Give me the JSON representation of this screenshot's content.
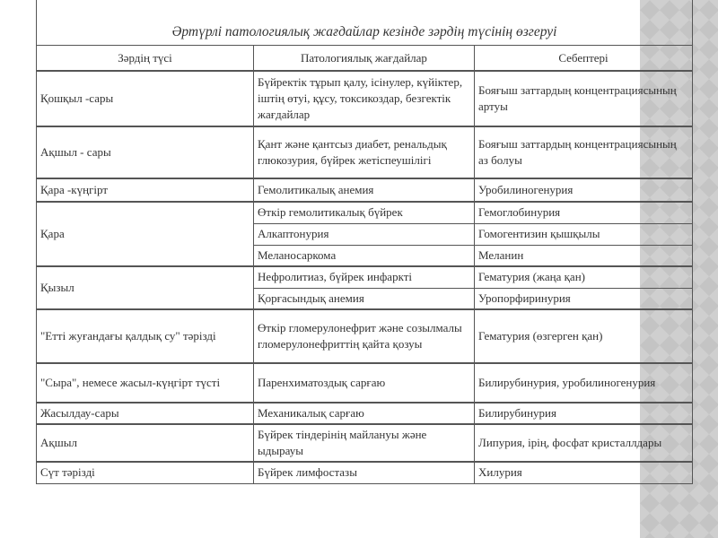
{
  "title": "Әртүрлі патологиялық жағдайлар кезінде зәрдің түсінің өзгеруі",
  "headers": [
    "Зәрдің түсі",
    "Патологиялық жағдайлар",
    "Себептері"
  ],
  "rows": [
    {
      "color": "Қошқыл -сары",
      "items": [
        {
          "condition": "Бүйректік тұрып қалу, ісінулер, күйіктер, іштің өтуі, құсу, токсикоздар, безгектік жағдайлар",
          "cause": "Бояғыш заттардың концентрациясының артуы"
        }
      ]
    },
    {
      "color": "Ақшыл - сары",
      "items": [
        {
          "condition": "Қант және қантсыз диабет, ренальдық глюкозурия, бүйрек жетіспеушілігі",
          "cause": "Бояғыш заттардың концентрациясының аз болуы"
        }
      ]
    },
    {
      "color": "Қара -күңгірт",
      "items": [
        {
          "condition": "Гемолитикалық анемия",
          "cause": "Уробилиногенурия"
        }
      ]
    },
    {
      "color": "Қара",
      "items": [
        {
          "condition": "Өткір гемолитикалық бүйрек",
          "cause": "Гемоглобинурия"
        },
        {
          "condition": "Алкаптонурия",
          "cause": "Гомогентизин қышқылы"
        },
        {
          "condition": "Меланосаркома",
          "cause": "Меланин"
        }
      ]
    },
    {
      "color": "Қызыл",
      "items": [
        {
          "condition": "Нефролитиаз, бүйрек инфаркті",
          "cause": "Гематурия (жаңа қан)"
        },
        {
          "condition": "Қорғасындық  анемия",
          "cause": "Уропорфиринурия"
        }
      ]
    },
    {
      "color": "\"Етті жуғандағы қалдық су\" тәрізді",
      "items": [
        {
          "condition": "Өткір гломерулонефрит және созылмалы гломерулонефриттің қайта қозуы",
          "cause": "Гематурия (өзгерген қан)"
        }
      ]
    },
    {
      "color": "\"Сыра\", немесе жасыл-күңгірт түсті",
      "items": [
        {
          "condition": "Паренхиматоздық сарғаю",
          "cause": "Билирубинурия, уробилиногенурия"
        }
      ]
    },
    {
      "color": "Жасылдау-сары",
      "items": [
        {
          "condition": "Механикалық сарғаю",
          "cause": "Билирубинурия"
        }
      ]
    },
    {
      "color": "Ақшыл",
      "items": [
        {
          "condition": "Бүйрек тіндерінің майлануы және ыдырауы",
          "cause": "Липурия, ірің, фосфат кристаллдары"
        }
      ]
    },
    {
      "color": "Сүт тәрізді",
      "items": [
        {
          "condition": "Бүйрек лимфостазы",
          "cause": "Хилурия"
        }
      ]
    }
  ]
}
